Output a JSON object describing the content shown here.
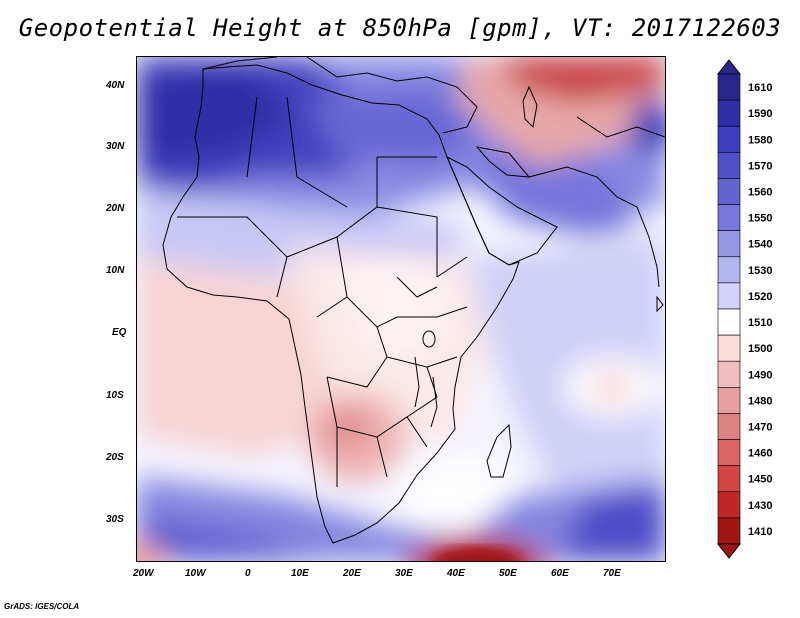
{
  "title": "Geopotential Height at 850hPa [gpm], VT: 2017122603",
  "credit": "GrADS: IGES/COLA",
  "map": {
    "field": "Geopotential Height at 850hPa",
    "units": "gpm",
    "valid_time": "2017122603",
    "lat_range": [
      -37,
      45
    ],
    "lon_range": [
      -23,
      79
    ],
    "lat_ticks": [
      {
        "value": 40,
        "label": "40N"
      },
      {
        "value": 30,
        "label": "30N"
      },
      {
        "value": 20,
        "label": "20N"
      },
      {
        "value": 10,
        "label": "10N"
      },
      {
        "value": 0,
        "label": "EQ"
      },
      {
        "value": -10,
        "label": "10S"
      },
      {
        "value": -20,
        "label": "20S"
      },
      {
        "value": -30,
        "label": "30S"
      }
    ],
    "lon_ticks": [
      {
        "value": -20,
        "label": "20W"
      },
      {
        "value": -10,
        "label": "10W"
      },
      {
        "value": 0,
        "label": "0"
      },
      {
        "value": 10,
        "label": "10E"
      },
      {
        "value": 20,
        "label": "20E"
      },
      {
        "value": 30,
        "label": "30E"
      },
      {
        "value": 40,
        "label": "40E"
      },
      {
        "value": 50,
        "label": "50E"
      },
      {
        "value": 60,
        "label": "60E"
      },
      {
        "value": 70,
        "label": "70E"
      }
    ]
  },
  "colorbar": {
    "levels": [
      {
        "label": "1610",
        "color": "#28288c"
      },
      {
        "label": "1590",
        "color": "#2e2ea6"
      },
      {
        "label": "1580",
        "color": "#3c3cbe"
      },
      {
        "label": "1570",
        "color": "#5050c8"
      },
      {
        "label": "1560",
        "color": "#6464d2"
      },
      {
        "label": "1550",
        "color": "#7878dc"
      },
      {
        "label": "1540",
        "color": "#9696e6"
      },
      {
        "label": "1530",
        "color": "#b4b4f0"
      },
      {
        "label": "1520",
        "color": "#d2d2fa"
      },
      {
        "label": "1510",
        "color": "#ffffff"
      },
      {
        "label": "1500",
        "color": "#fadcdc"
      },
      {
        "label": "1490",
        "color": "#f0bebe"
      },
      {
        "label": "1480",
        "color": "#e6a0a0"
      },
      {
        "label": "1470",
        "color": "#dc8282"
      },
      {
        "label": "1460",
        "color": "#dc6464"
      },
      {
        "label": "1450",
        "color": "#d24646"
      },
      {
        "label": "1430",
        "color": "#c02828"
      },
      {
        "label": "1410",
        "color": "#a01414"
      }
    ]
  }
}
